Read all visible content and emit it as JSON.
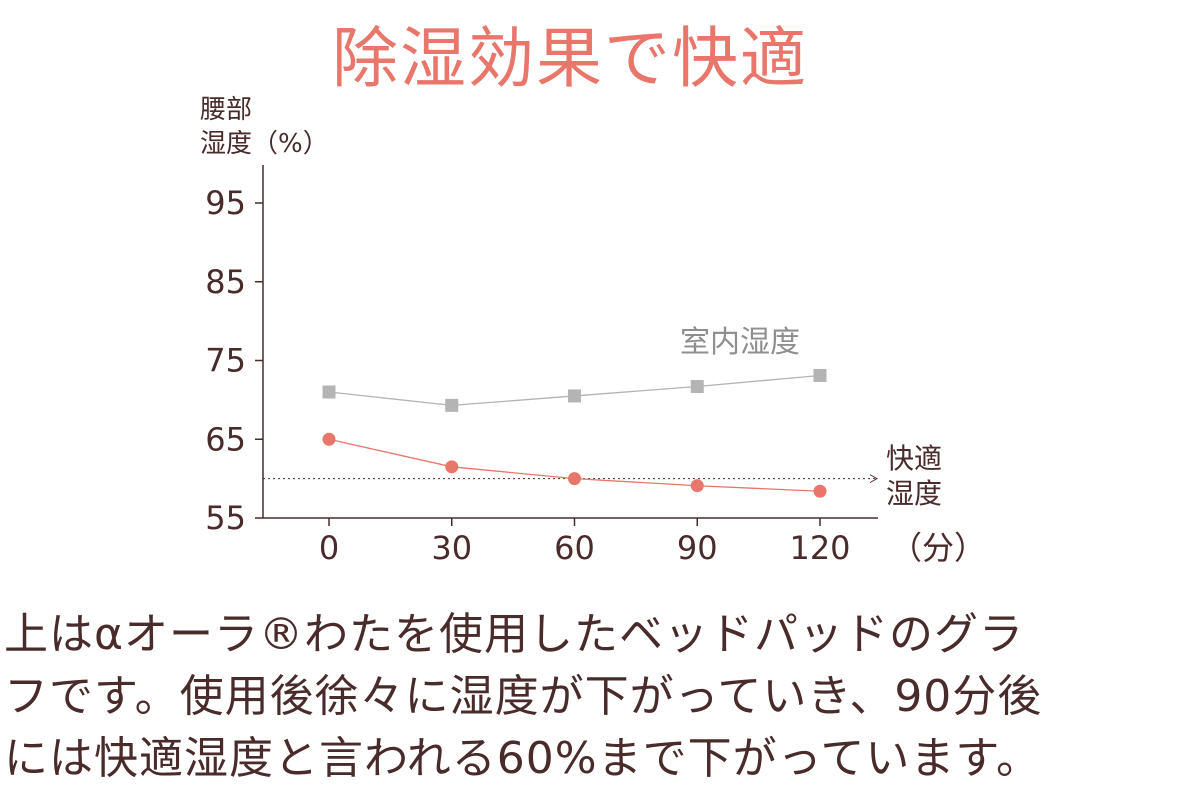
{
  "title": "除湿効果で快適",
  "chart_data": {
    "type": "line",
    "ylabel_lines": [
      "腰部",
      "湿度（%）"
    ],
    "x_unit": "（分）",
    "x": [
      0,
      30,
      60,
      90,
      120
    ],
    "x_tick_labels": [
      "0",
      "30",
      "60",
      "90",
      "120"
    ],
    "y_ticks": [
      95,
      85,
      75,
      65,
      55
    ],
    "y_tick_labels": [
      "95",
      "85",
      "75",
      "65",
      "55"
    ],
    "ylim": [
      55,
      100
    ],
    "xlim": [
      -15,
      135
    ],
    "grid": false,
    "series": [
      {
        "name": "室内湿度",
        "values": [
          71,
          69.3,
          70.5,
          71.7,
          73.1
        ],
        "color": "#b4b4b4",
        "marker": "square"
      },
      {
        "name": "",
        "values": [
          65,
          61.5,
          60,
          59.1,
          58.4
        ],
        "color": "#e8766a",
        "marker": "circle"
      }
    ],
    "reference_line": {
      "y": 60,
      "label_lines": [
        "快適",
        "湿度"
      ],
      "style": "dotted"
    }
  },
  "caption": {
    "lines": [
      "上はαオーラ®わたを使用したベッドパッドのグラ",
      "フです。使用後徐々に湿度が下がっていき、90分後",
      "には快適湿度と言われる60%まで下がっています。"
    ]
  },
  "colors": {
    "accent": "#e8766a",
    "text": "#4a2b2b",
    "indoor": "#b4b4b4"
  }
}
